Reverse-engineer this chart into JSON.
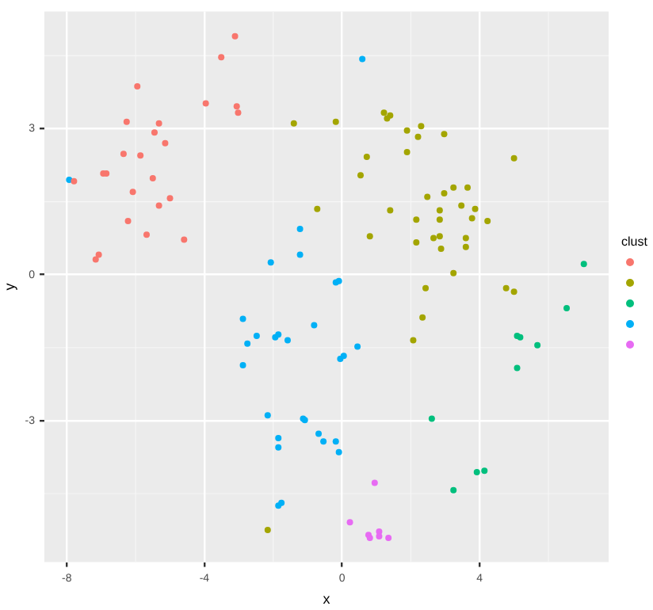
{
  "chart_data": {
    "type": "scatter",
    "xlabel": "x",
    "ylabel": "y",
    "legend_title": "clust",
    "grid": true,
    "marker": "circle",
    "xlim": [
      -8.65,
      7.75
    ],
    "ylim": [
      -5.91,
      5.41
    ],
    "xticks": [
      -8,
      -4,
      0,
      4
    ],
    "yticks": [
      -3,
      0,
      3
    ],
    "series": [
      {
        "color": "#f8766d",
        "x": [
          -3.11,
          -3.51,
          -5.95,
          -3.96,
          -3.06,
          -3.02,
          -6.26,
          -5.32,
          -5.45,
          -5.14,
          -6.35,
          -5.86,
          -7.79,
          -6.94,
          -6.85,
          -5.5,
          -6.08,
          -5.0,
          -5.32,
          -6.22,
          -5.68,
          -4.59,
          -7.07,
          -7.16
        ],
        "values": [
          4.9,
          4.47,
          3.87,
          3.52,
          3.46,
          3.33,
          3.14,
          3.11,
          2.92,
          2.7,
          2.48,
          2.45,
          1.92,
          2.08,
          2.08,
          1.98,
          1.7,
          1.57,
          1.42,
          1.1,
          0.82,
          0.72,
          0.41,
          0.31
        ]
      },
      {
        "color": "#a3a500",
        "x": [
          -1.4,
          -0.18,
          1.22,
          1.4,
          1.31,
          1.89,
          2.3,
          2.21,
          2.97,
          0.72,
          1.89,
          5.0,
          0.54,
          3.24,
          3.65,
          2.48,
          2.97,
          3.47,
          3.87,
          -0.72,
          1.4,
          2.84,
          2.16,
          2.84,
          3.78,
          4.23,
          0.81,
          2.66,
          2.84,
          3.6,
          2.16,
          3.6,
          2.88,
          3.24,
          2.43,
          4.77,
          5.0,
          2.34,
          2.07,
          -2.16
        ],
        "values": [
          3.11,
          3.14,
          3.33,
          3.27,
          3.21,
          2.96,
          3.05,
          2.83,
          2.89,
          2.42,
          2.52,
          2.39,
          2.04,
          1.79,
          1.79,
          1.6,
          1.67,
          1.42,
          1.35,
          1.35,
          1.32,
          1.32,
          1.13,
          1.13,
          1.16,
          1.1,
          0.79,
          0.75,
          0.79,
          0.75,
          0.66,
          0.57,
          0.53,
          0.03,
          -0.28,
          -0.28,
          -0.35,
          -0.88,
          -1.35,
          -5.25
        ]
      },
      {
        "color": "#00bf7d",
        "x": [
          7.03,
          6.53,
          5.09,
          5.18,
          5.68,
          5.09,
          2.61,
          3.92,
          4.14,
          3.24
        ],
        "values": [
          0.22,
          -0.69,
          -1.26,
          -1.29,
          -1.45,
          -1.92,
          -2.96,
          -4.06,
          -4.03,
          -4.43
        ]
      },
      {
        "color": "#00b0f6",
        "x": [
          -7.93,
          0.59,
          -0.18,
          -0.09,
          -2.07,
          -1.22,
          -1.22,
          -0.81,
          0.45,
          -0.05,
          0.05,
          -0.68,
          -0.54,
          -0.18,
          -0.09,
          -2.88,
          -2.48,
          -2.75,
          -1.94,
          -1.85,
          -1.58,
          -2.88,
          -2.16,
          -1.13,
          -1.08,
          -1.85,
          -1.85,
          -1.85,
          -1.76
        ],
        "values": [
          1.95,
          4.43,
          -0.16,
          -0.13,
          0.25,
          0.94,
          0.41,
          -1.04,
          -1.48,
          -1.73,
          -1.67,
          -3.27,
          -3.43,
          -3.43,
          -3.65,
          -0.91,
          -1.26,
          -1.42,
          -1.29,
          -1.23,
          -1.35,
          -1.86,
          -2.89,
          -2.96,
          -2.99,
          -3.36,
          -3.55,
          -4.75,
          -4.69
        ]
      },
      {
        "color": "#e76bf3",
        "x": [
          0.95,
          0.23,
          0.77,
          0.81,
          1.08,
          1.08,
          1.35
        ],
        "values": [
          -4.28,
          -5.09,
          -5.35,
          -5.41,
          -5.28,
          -5.38,
          -5.41
        ]
      }
    ]
  }
}
